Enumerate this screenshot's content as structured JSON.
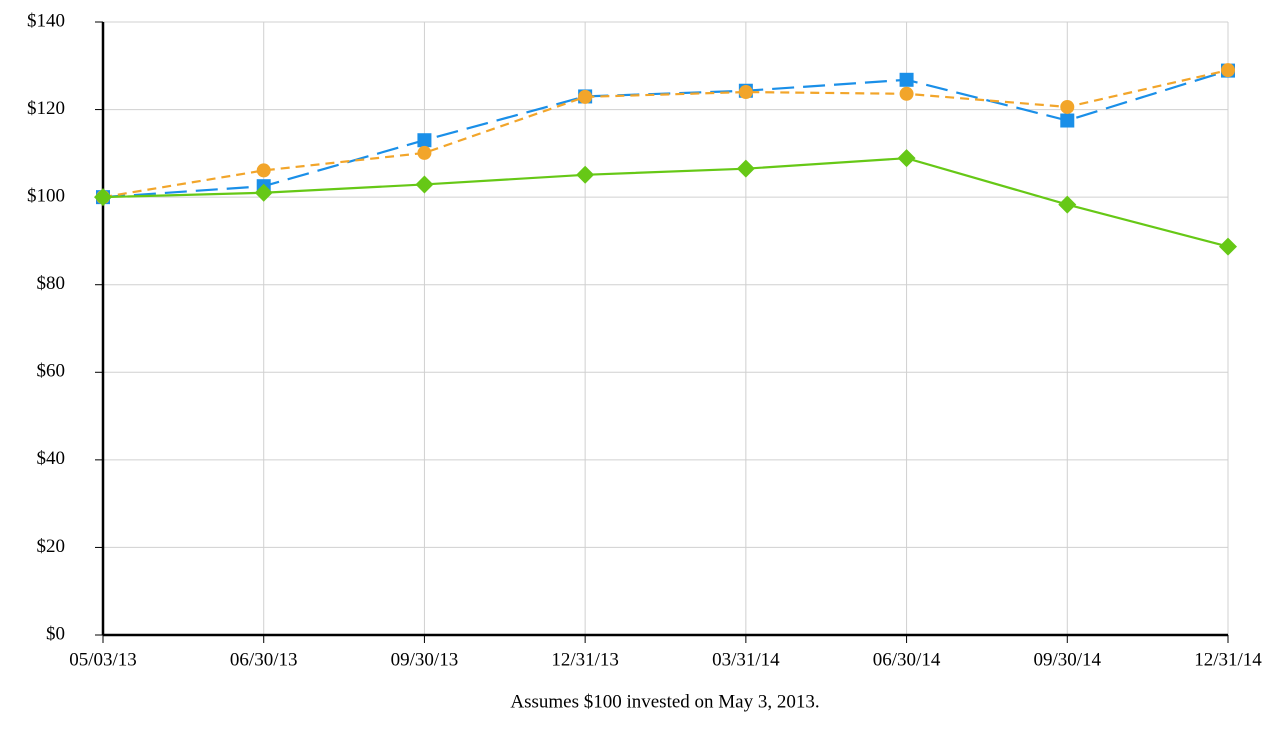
{
  "chart_data": {
    "type": "line",
    "categories": [
      "05/03/13",
      "06/30/13",
      "09/30/13",
      "12/31/13",
      "03/31/14",
      "06/30/14",
      "09/30/14",
      "12/31/14"
    ],
    "xlabel": "Assumes $100 invested on May 3, 2013.",
    "ylim": [
      0,
      140
    ],
    "yticks": [
      {
        "value": 0,
        "label": "$0"
      },
      {
        "value": 20,
        "label": "$20"
      },
      {
        "value": 40,
        "label": "$40"
      },
      {
        "value": 60,
        "label": "$60"
      },
      {
        "value": 80,
        "label": "$80"
      },
      {
        "value": 100,
        "label": "$100"
      },
      {
        "value": 120,
        "label": "$120"
      },
      {
        "value": 140,
        "label": "$140"
      }
    ],
    "grid": true,
    "series": [
      {
        "color": "#1a8fe8",
        "marker": "square",
        "dash": "long",
        "values": [
          100,
          102.5,
          113,
          123,
          124.3,
          126.8,
          117.5,
          128.9
        ]
      },
      {
        "color": "#f2a52a",
        "marker": "circle",
        "dash": "short",
        "values": [
          100,
          106.1,
          110.1,
          122.9,
          124,
          123.6,
          120.6,
          129
        ]
      },
      {
        "color": "#66c816",
        "marker": "diamond",
        "dash": "solid",
        "values": [
          100,
          101,
          102.9,
          105.1,
          106.5,
          108.9,
          98.3,
          88.7
        ]
      }
    ]
  }
}
